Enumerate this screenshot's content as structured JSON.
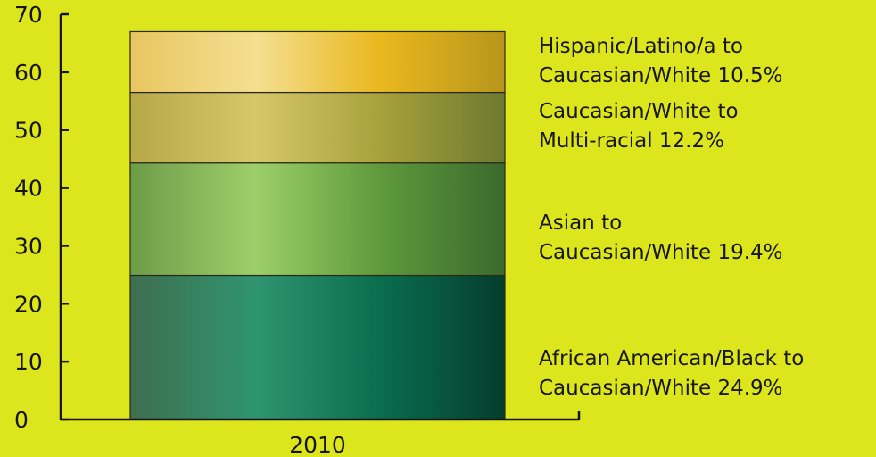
{
  "chart_data": {
    "type": "bar",
    "stacked": true,
    "categories": [
      "2010"
    ],
    "ylim": [
      0,
      70
    ],
    "yticks": [
      0,
      10,
      20,
      30,
      40,
      50,
      60,
      70
    ],
    "grid": false,
    "legend_position": "right",
    "series": [
      {
        "name_lines": [
          "African American/Black to",
          "Caucasian/White 24.9%"
        ],
        "values": [
          24.9
        ],
        "gradient": [
          "#3f6e4f",
          "#2f9470",
          "#0a6e4e",
          "#063d2c"
        ]
      },
      {
        "name_lines": [
          "Asian to",
          "Caucasian/White 19.4%"
        ],
        "values": [
          19.4
        ],
        "gradient": [
          "#6d9c48",
          "#9ccf6a",
          "#5f9a3c",
          "#3a6a2e"
        ]
      },
      {
        "name_lines": [
          "Caucasian/White to",
          "Multi-racial 12.2%"
        ],
        "values": [
          12.2
        ],
        "gradient": [
          "#b7a84a",
          "#d6c868",
          "#a8a13c",
          "#6d7a30"
        ]
      },
      {
        "name_lines": [
          "Hispanic/Latino/a to",
          "Caucasian/White 10.5%"
        ],
        "values": [
          10.5
        ],
        "gradient": [
          "#e8c660",
          "#f4df92",
          "#eab81e",
          "#b8961c"
        ]
      }
    ]
  }
}
